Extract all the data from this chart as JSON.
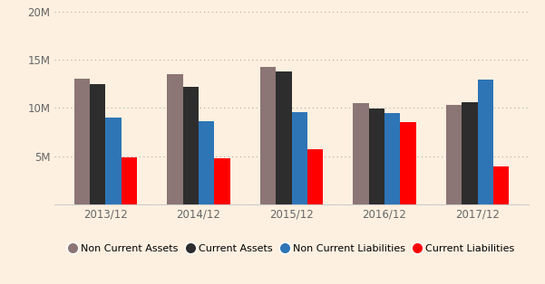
{
  "categories": [
    "2013/12",
    "2014/12",
    "2015/12",
    "2016/12",
    "2017/12"
  ],
  "series": {
    "Non Current Assets": [
      13000000,
      13500000,
      14200000,
      10500000,
      10300000
    ],
    "Current Assets": [
      12500000,
      12200000,
      13800000,
      9900000,
      10600000
    ],
    "Non Current Liabilities": [
      9000000,
      8600000,
      9600000,
      9500000,
      12900000
    ],
    "Current Liabilities": [
      4900000,
      4800000,
      5700000,
      8500000,
      3900000
    ]
  },
  "colors": {
    "Non Current Assets": "#8B7575",
    "Current Assets": "#2D2D2D",
    "Non Current Liabilities": "#2E75B6",
    "Current Liabilities": "#FF0000"
  },
  "background_color": "#FDF0E0",
  "ylim": [
    0,
    20000000
  ],
  "yticks": [
    0,
    5000000,
    10000000,
    15000000,
    20000000
  ],
  "ytick_labels": [
    "",
    "5M",
    "10M",
    "15M",
    "20M"
  ],
  "bar_width": 0.17,
  "legend_marker_color": {
    "Non Current Assets": "#8B7575",
    "Current Assets": "#2D2D2D",
    "Non Current Liabilities": "#2E75B6",
    "Current Liabilities": "#FF0000"
  }
}
